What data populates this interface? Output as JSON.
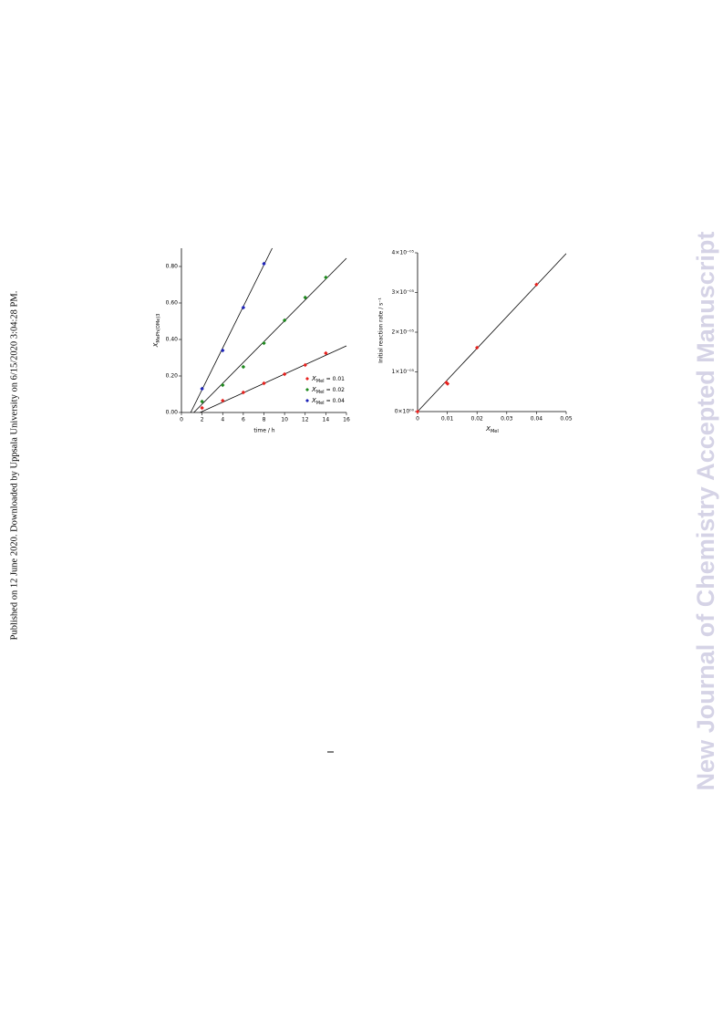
{
  "side_text": "Published on 12 June 2020. Downloaded by Uppsala University on 6/15/2020 3:04:28 PM.",
  "watermark": "New Journal of Chemistry Accepted Manuscript",
  "chart_data": [
    {
      "type": "scatter",
      "xlabel": "time / h",
      "ylabel_symbol": "X",
      "ylabel_subscript": "MePh(OMe)3",
      "xlim": [
        0,
        16
      ],
      "ylim": [
        0,
        0.9
      ],
      "xticks": [
        0,
        2,
        4,
        6,
        8,
        10,
        12,
        14,
        16
      ],
      "yticks": [
        {
          "value": 0,
          "label": "0.00"
        },
        {
          "value": 0.2,
          "label": "0.20"
        },
        {
          "value": 0.4,
          "label": "0.40"
        },
        {
          "value": 0.6,
          "label": "0.60"
        },
        {
          "value": 0.8,
          "label": "0.80"
        }
      ],
      "legend": "lower right",
      "series": [
        {
          "symbol": "X",
          "subscript": "MeI",
          "name": "= 0.01",
          "color": "#e8221e",
          "x": [
            2,
            4,
            6,
            8,
            10,
            12,
            14
          ],
          "values": [
            0.025,
            0.065,
            0.11,
            0.16,
            0.21,
            0.26,
            0.325
          ]
        },
        {
          "symbol": "X",
          "subscript": "MeI",
          "name": "= 0.02",
          "color": "#1f8a1f",
          "x": [
            2,
            4,
            6,
            8,
            10,
            12,
            14
          ],
          "values": [
            0.06,
            0.15,
            0.25,
            0.38,
            0.505,
            0.63,
            0.74
          ]
        },
        {
          "symbol": "X",
          "subscript": "MeI",
          "name": "= 0.04",
          "color": "#1c22b8",
          "x": [
            2,
            4,
            6,
            8
          ],
          "values": [
            0.13,
            0.34,
            0.575,
            0.815
          ]
        }
      ],
      "fits": [
        {
          "color": "#000000",
          "x": [
            1.8,
            16
          ],
          "values": [
            0,
            0.365
          ]
        },
        {
          "color": "#000000",
          "x": [
            1.2,
            16
          ],
          "values": [
            0,
            0.845
          ]
        },
        {
          "color": "#000000",
          "x": [
            0.9,
            8.8
          ],
          "values": [
            0,
            0.9
          ]
        }
      ]
    },
    {
      "type": "scatter",
      "xlabel_symbol": "X",
      "xlabel_subscript": "MeI",
      "ylabel": "Initial reaction rate / s⁻¹",
      "xlim": [
        0,
        0.05
      ],
      "ylim": [
        0,
        4e-05
      ],
      "xticks": [
        0,
        0.01,
        0.02,
        0.03,
        0.04,
        0.05
      ],
      "yticks": [
        {
          "value": 0,
          "label": "0×10⁰⁰"
        },
        {
          "value": 1e-05,
          "label": "1×10⁻⁰⁵"
        },
        {
          "value": 2e-05,
          "label": "2×10⁻⁰⁵"
        },
        {
          "value": 3e-05,
          "label": "3×10⁻⁰⁵"
        },
        {
          "value": 4e-05,
          "label": "4×10⁻⁰⁵"
        }
      ],
      "series": [
        {
          "color": "#e8221e",
          "x": [
            0,
            0.0097,
            0.0101,
            0.02,
            0.04
          ],
          "values": [
            0,
            7.3e-06,
            7e-06,
            1.61e-05,
            3.2e-05
          ]
        }
      ],
      "fits": [
        {
          "color": "#000000",
          "x": [
            0,
            0.05
          ],
          "values": [
            0,
            3.98e-05
          ]
        }
      ]
    }
  ]
}
